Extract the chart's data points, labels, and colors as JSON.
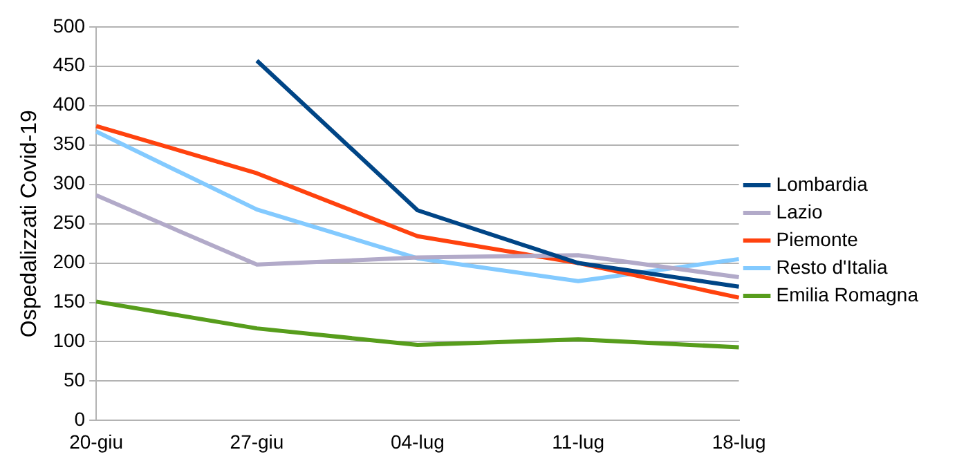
{
  "chart_data": {
    "type": "line",
    "ylabel": "Ospedalizzati Covid-19",
    "categories": [
      "20-giu",
      "27-giu",
      "04-lug",
      "11-lug",
      "18-lug"
    ],
    "series": [
      {
        "name": "Lombardia",
        "color": "#004586",
        "values": [
          null,
          457,
          267,
          200,
          170
        ]
      },
      {
        "name": "Lazio",
        "color": "#b2aac9",
        "values": [
          286,
          198,
          207,
          210,
          182
        ]
      },
      {
        "name": "Piemonte",
        "color": "#ff420e",
        "values": [
          374,
          314,
          234,
          200,
          156
        ]
      },
      {
        "name": "Resto d'Italia",
        "color": "#83caff",
        "values": [
          367,
          268,
          206,
          177,
          205
        ]
      },
      {
        "name": "Emilia Romagna",
        "color": "#579d1c",
        "values": [
          151,
          117,
          96,
          103,
          93
        ]
      }
    ],
    "ylim": [
      0,
      500
    ],
    "yticks": [
      0,
      50,
      100,
      150,
      200,
      250,
      300,
      350,
      400,
      450,
      500
    ],
    "grid": "y",
    "legend": "right",
    "marker": "none",
    "line_style": "solid"
  }
}
